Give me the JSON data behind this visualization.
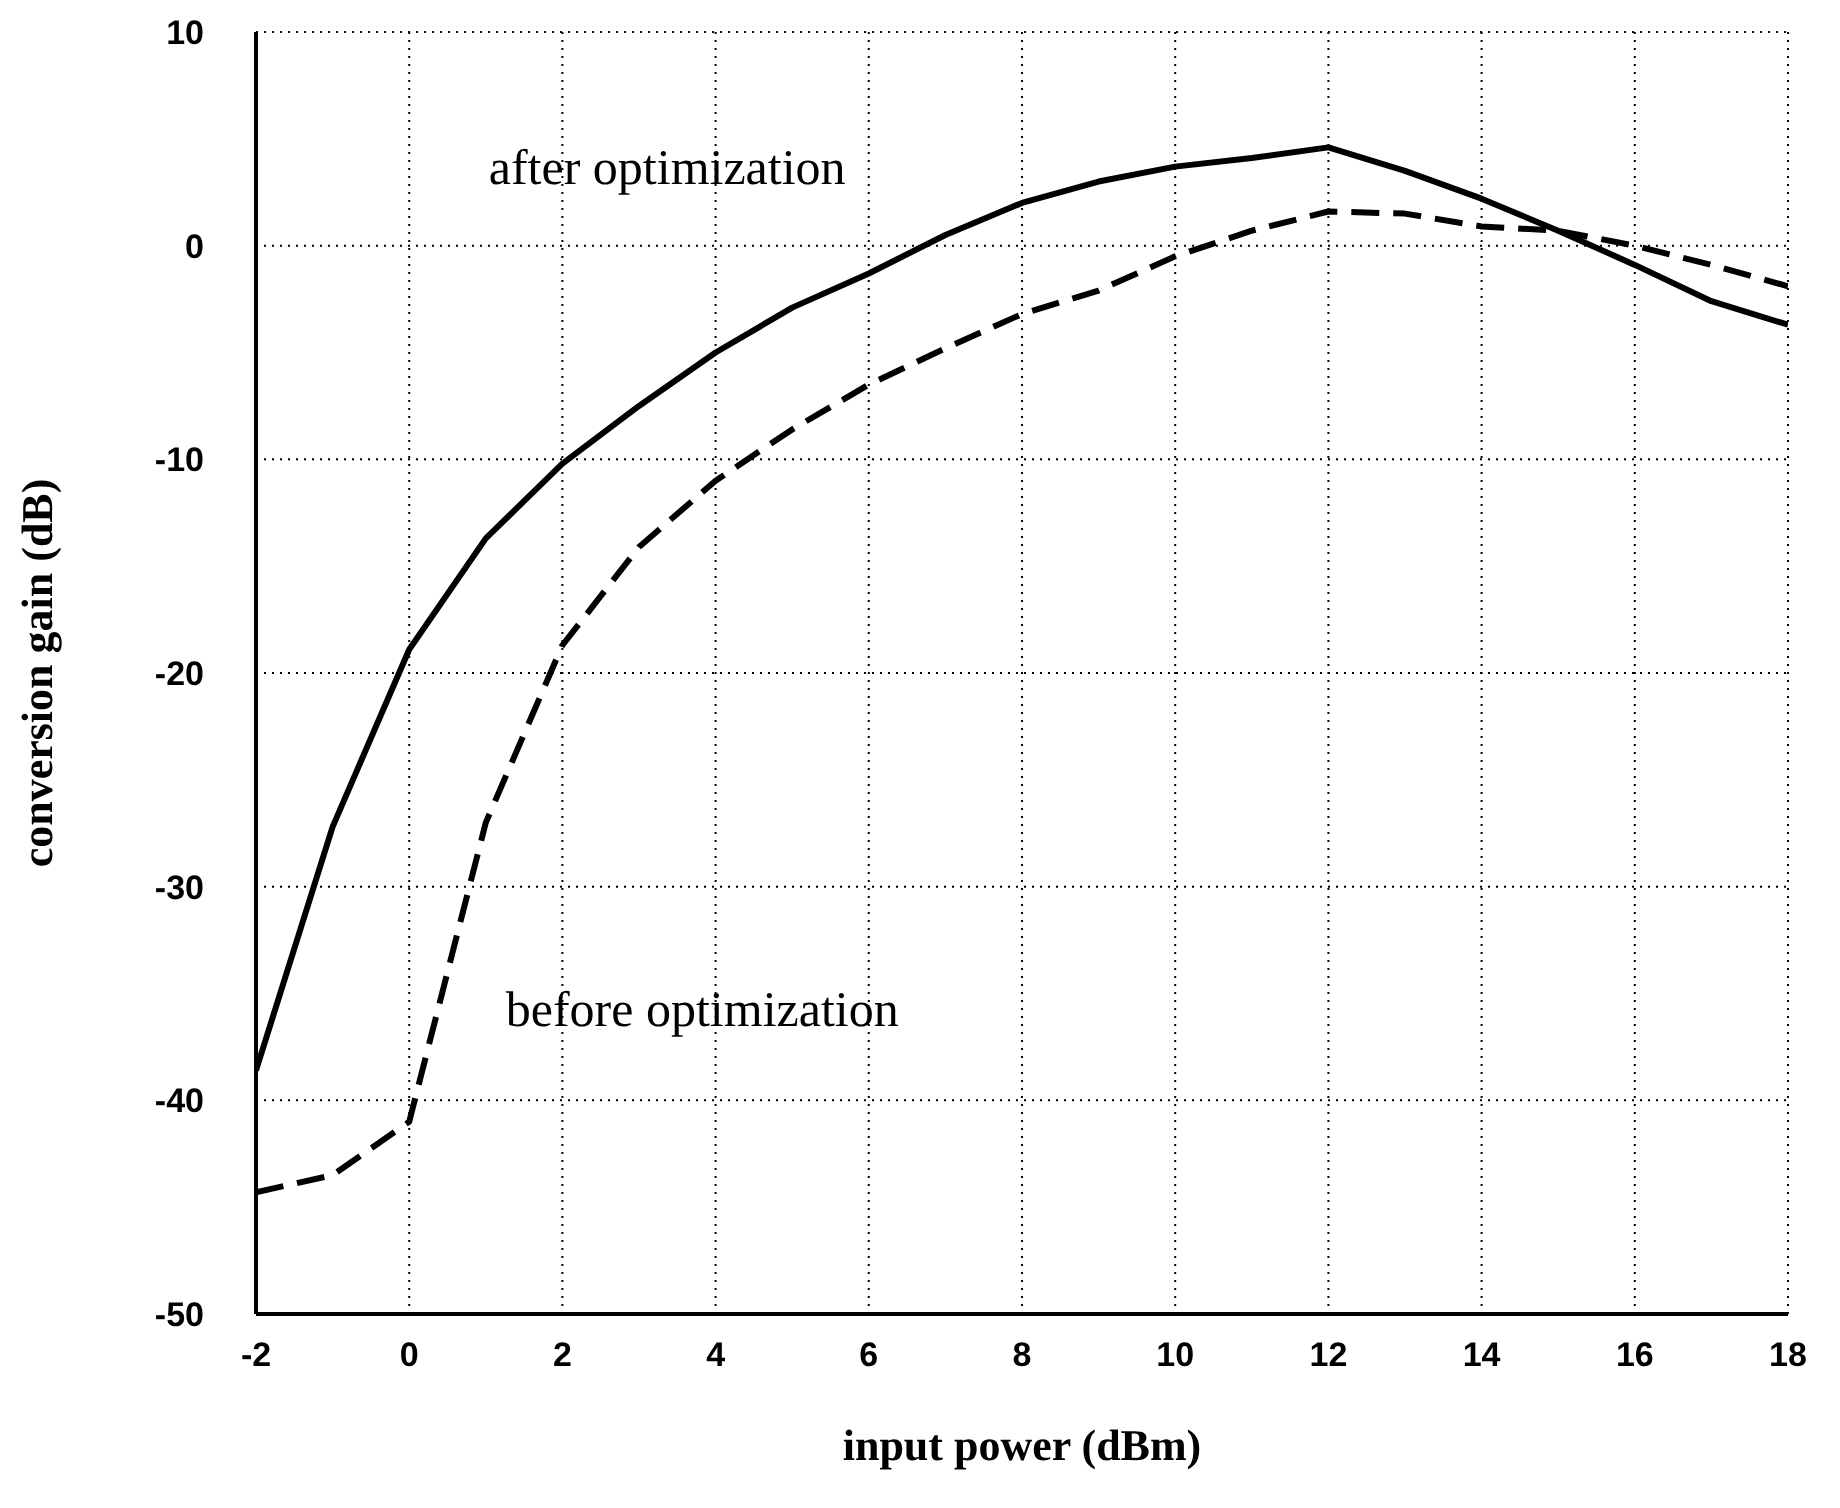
{
  "chart_data": {
    "type": "line",
    "xlabel": "input power (dBm)",
    "ylabel": "conversion gain (dB)",
    "x": [
      -2,
      -1,
      0,
      1,
      2,
      3,
      4,
      5,
      6,
      7,
      8,
      9,
      10,
      11,
      12,
      13,
      14,
      15,
      16,
      17,
      18
    ],
    "series": [
      {
        "name": "after optimization",
        "color": "#000000",
        "line_style": "solid",
        "values": [
          -38.6,
          -27.2,
          -18.9,
          -13.7,
          -10.2,
          -7.5,
          -5.0,
          -2.9,
          -1.3,
          0.5,
          2.0,
          3.0,
          3.7,
          4.1,
          4.6,
          3.5,
          2.2,
          0.7,
          -0.9,
          -2.6,
          -3.7
        ]
      },
      {
        "name": "before optimization",
        "color": "#000000",
        "line_style": "dashed",
        "values": [
          -44.3,
          -43.5,
          -41,
          -27,
          -18.7,
          -14.1,
          -11,
          -8.6,
          -6.5,
          -4.8,
          -3.2,
          -2.1,
          -0.5,
          0.7,
          1.6,
          1.5,
          0.9,
          0.7,
          0,
          -0.9,
          -1.9
        ]
      }
    ],
    "xlim": [
      -2,
      18
    ],
    "xticks": [
      -2,
      0,
      2,
      4,
      6,
      8,
      10,
      12,
      14,
      16,
      18
    ],
    "ylim": [
      -50,
      10
    ],
    "yticks": [
      -50,
      -40,
      -30,
      -20,
      -10,
      0,
      10
    ],
    "grid": true,
    "marker": "none",
    "legend": false
  }
}
